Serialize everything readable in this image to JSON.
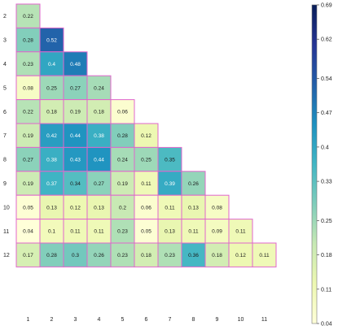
{
  "chart_data": {
    "type": "heatmap",
    "layout": "lower-triangle",
    "title": "",
    "xlabel": "",
    "ylabel": "",
    "x_categories": [
      "1",
      "2",
      "3",
      "4",
      "5",
      "6",
      "7",
      "8",
      "9",
      "10",
      "11"
    ],
    "y_categories": [
      "2",
      "3",
      "4",
      "5",
      "6",
      "7",
      "8",
      "9",
      "10",
      "11",
      "12"
    ],
    "values": [
      [
        0.22
      ],
      [
        0.28,
        0.52
      ],
      [
        0.23,
        0.4,
        0.48
      ],
      [
        0.08,
        0.25,
        0.27,
        0.24
      ],
      [
        0.22,
        0.18,
        0.19,
        0.18,
        0.06
      ],
      [
        0.19,
        0.42,
        0.44,
        0.38,
        0.28,
        0.12
      ],
      [
        0.27,
        0.38,
        0.43,
        0.44,
        0.24,
        0.25,
        0.35
      ],
      [
        0.19,
        0.37,
        0.34,
        0.27,
        0.19,
        0.11,
        0.39,
        0.26
      ],
      [
        0.05,
        0.13,
        0.12,
        0.13,
        0.2,
        0.06,
        0.11,
        0.13,
        0.08
      ],
      [
        0.04,
        0.1,
        0.11,
        0.11,
        0.23,
        0.05,
        0.13,
        0.11,
        0.09,
        0.11
      ],
      [
        0.17,
        0.28,
        0.3,
        0.26,
        0.23,
        0.18,
        0.23,
        0.36,
        0.18,
        0.12,
        0.11
      ]
    ],
    "color_scale": {
      "min": 0.04,
      "max": 0.69,
      "ticks": [
        "0.69",
        "0.62",
        "0.54",
        "0.47",
        "0.4",
        "0.33",
        "0.25",
        "0.18",
        "0.11",
        "0.04"
      ],
      "palette": [
        "#ffffd9",
        "#edf8b1",
        "#c7e9b4",
        "#7fcdbb",
        "#41b6c4",
        "#1d91c0",
        "#225ea8",
        "#253494",
        "#081d58"
      ]
    },
    "cell_border_color": "#e066cc",
    "grid": false,
    "legend": "right"
  }
}
